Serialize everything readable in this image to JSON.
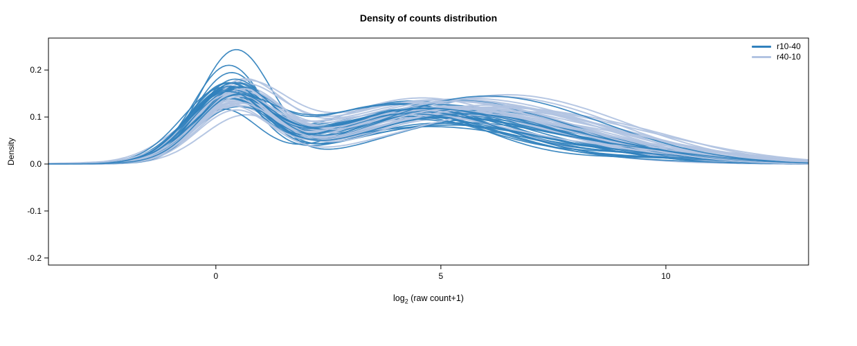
{
  "chart_data": {
    "type": "line",
    "title": "Density of counts distribution",
    "ylabel": "Density",
    "xlabel_parts": {
      "base": "log",
      "sub": "2",
      "rest": " (raw count+1)"
    },
    "axes": {
      "xlim": [
        -3.72,
        13.17
      ],
      "ylim": [
        -0.215,
        0.268
      ],
      "xticks": [
        {
          "value": 0,
          "label": "0"
        },
        {
          "value": 5,
          "label": "5"
        },
        {
          "value": 10,
          "label": "10"
        }
      ],
      "yticks": [
        {
          "value": -0.2,
          "label": "-0.2"
        },
        {
          "value": -0.1,
          "label": "-0.1"
        },
        {
          "value": 0.0,
          "label": "0.0"
        },
        {
          "value": 0.1,
          "label": "0.1"
        },
        {
          "value": 0.2,
          "label": "0.2"
        }
      ],
      "grid": false,
      "box": true
    },
    "legend": [
      {
        "label": "r10-40",
        "color": "#3181bd"
      },
      {
        "label": "r40-10",
        "color": "#b2c4e2"
      }
    ],
    "legend_position": "top-right",
    "series": [
      {
        "name": "r10-40",
        "color": "#3181bd",
        "n_curves": 32,
        "seed": 42,
        "peak1": {
          "height": [
            0.105,
            0.175
          ],
          "center": [
            0.05,
            0.55
          ],
          "sd": [
            0.72,
            0.95
          ]
        },
        "peak2": {
          "height": [
            0.075,
            0.145
          ],
          "center": [
            3.6,
            6.3
          ],
          "sd": [
            1.7,
            2.6
          ]
        },
        "tail": {
          "height": [
            0.0,
            0.035
          ],
          "center": [
            7.5,
            10.5
          ],
          "sd": [
            1.2,
            2.0
          ]
        },
        "peak1_highlights": [
          0.235,
          0.205,
          0.192
        ]
      },
      {
        "name": "r40-10",
        "color": "#b2c4e2",
        "n_curves": 32,
        "seed": 7,
        "peak1": {
          "height": [
            0.095,
            0.155
          ],
          "center": [
            0.15,
            0.7
          ],
          "sd": [
            0.78,
            1.05
          ]
        },
        "peak2": {
          "height": [
            0.085,
            0.15
          ],
          "center": [
            3.4,
            6.6
          ],
          "sd": [
            1.9,
            2.8
          ]
        },
        "tail": {
          "height": [
            0.0,
            0.04
          ],
          "center": [
            7.0,
            10.5
          ],
          "sd": [
            1.3,
            2.2
          ]
        }
      }
    ],
    "curve_shape": "bimodal-density, main peak near x=0.3 (density 0.10-0.235), broad secondary hump near x=4-6 (density 0.08-0.15), curves converge to density 0 at x<-3 and x>12"
  }
}
